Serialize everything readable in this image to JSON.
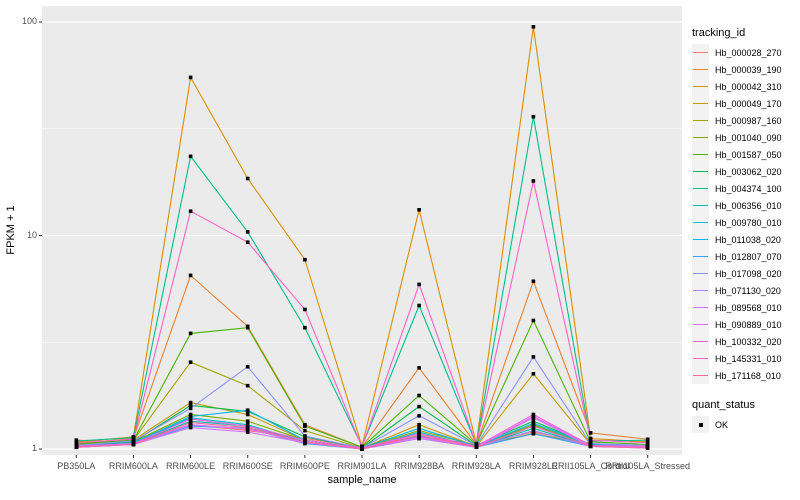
{
  "figure": {
    "background": "#FFFFFF",
    "panel_bg": "#EBEBEB",
    "grid_color": "#FFFFFF",
    "axis_text_color": "#4D4D4D",
    "tick_mark_color": "#333333",
    "point_color": "#000000"
  },
  "axes": {
    "x_title": "sample_name",
    "y_title": "FPKM + 1",
    "y_tick_labels": [
      "1",
      "10",
      "100"
    ],
    "y_tick_values": [
      1,
      10,
      100
    ],
    "y_minor_values": [
      3.1623,
      31.623
    ],
    "y_scale": "log10"
  },
  "legend": {
    "tracking_title": "tracking_id",
    "quant_title": "quant_status",
    "quant_items": [
      {
        "label": "OK",
        "shape": "square",
        "color": "#000000"
      }
    ]
  },
  "chart_data": {
    "type": "line",
    "title": "",
    "xlabel": "sample_name",
    "ylabel": "FPKM + 1",
    "yscale": "log10",
    "ylim": [
      0.94,
      119
    ],
    "grid": "on",
    "legend_position": "right",
    "x_categories": [
      "PB350LA",
      "RRIM600LA",
      "RRIM600LE",
      "RRIM600SE",
      "RRIM600PE",
      "RRIM901LA",
      "RRIM928BA",
      "RRIM928LA",
      "RRIM928LE",
      "RRII105LA_Control",
      "RRII105LA_Stressed"
    ],
    "series": [
      {
        "name": "Hb_000028_270",
        "color": "#F8766D",
        "values": [
          1.1,
          1.08,
          1.3,
          1.22,
          1.12,
          1.02,
          1.15,
          1.05,
          1.2,
          1.06,
          1.03
        ]
      },
      {
        "name": "Hb_000039_190",
        "color": "#E8812E",
        "values": [
          1.06,
          1.12,
          6.5,
          3.75,
          1.3,
          1.02,
          2.4,
          1.05,
          6.1,
          1.19,
          1.11
        ]
      },
      {
        "name": "Hb_000042_310",
        "color": "#D89000",
        "values": [
          1.08,
          1.14,
          55.0,
          18.5,
          7.7,
          1.03,
          13.2,
          1.06,
          95.0,
          1.12,
          1.08
        ]
      },
      {
        "name": "Hb_000049_170",
        "color": "#C49A00",
        "values": [
          1.04,
          1.1,
          1.65,
          1.45,
          1.1,
          1.01,
          1.3,
          1.03,
          2.25,
          1.05,
          1.03
        ]
      },
      {
        "name": "Hb_000987_160",
        "color": "#A3A500",
        "values": [
          1.05,
          1.1,
          2.55,
          1.98,
          1.22,
          1.01,
          1.22,
          1.04,
          1.18,
          1.05,
          1.02
        ]
      },
      {
        "name": "Hb_001040_090",
        "color": "#7CAE00",
        "values": [
          1.03,
          1.08,
          1.45,
          1.35,
          1.1,
          1.01,
          1.18,
          1.03,
          1.3,
          1.04,
          1.02
        ]
      },
      {
        "name": "Hb_001587_050",
        "color": "#49B500",
        "values": [
          1.06,
          1.1,
          3.48,
          3.7,
          1.28,
          1.02,
          1.78,
          1.05,
          4.0,
          1.08,
          1.05
        ]
      },
      {
        "name": "Hb_003062_020",
        "color": "#00BB4E",
        "values": [
          1.04,
          1.08,
          1.6,
          1.5,
          1.14,
          1.01,
          1.58,
          1.04,
          1.35,
          1.05,
          1.03
        ]
      },
      {
        "name": "Hb_004374_100",
        "color": "#00C08B",
        "values": [
          1.09,
          1.13,
          23.5,
          10.4,
          3.7,
          1.03,
          4.7,
          1.05,
          36.0,
          1.09,
          1.1
        ]
      },
      {
        "name": "Hb_006356_010",
        "color": "#00C0B4",
        "values": [
          1.03,
          1.06,
          1.35,
          1.28,
          1.08,
          1.0,
          1.15,
          1.02,
          1.25,
          1.03,
          1.02
        ]
      },
      {
        "name": "Hb_009780_010",
        "color": "#00BDD0",
        "values": [
          1.02,
          1.06,
          1.4,
          1.3,
          1.08,
          1.0,
          1.2,
          1.02,
          1.28,
          1.04,
          1.02
        ]
      },
      {
        "name": "Hb_011038_020",
        "color": "#00B4EF",
        "values": [
          1.03,
          1.07,
          1.42,
          1.52,
          1.1,
          1.01,
          1.25,
          1.03,
          1.32,
          1.05,
          1.03
        ]
      },
      {
        "name": "Hb_012807_070",
        "color": "#35A2FF",
        "values": [
          1.02,
          1.05,
          1.28,
          1.25,
          1.06,
          1.0,
          1.12,
          1.02,
          1.18,
          1.03,
          1.01
        ]
      },
      {
        "name": "Hb_017098_020",
        "color": "#8B93FF",
        "values": [
          1.04,
          1.09,
          1.55,
          2.43,
          1.15,
          1.01,
          1.43,
          1.04,
          2.7,
          1.06,
          1.04
        ]
      },
      {
        "name": "Hb_071130_020",
        "color": "#AE87FF",
        "values": [
          1.02,
          1.05,
          1.3,
          1.24,
          1.08,
          1.0,
          1.14,
          1.02,
          1.22,
          1.03,
          1.02
        ]
      },
      {
        "name": "Hb_089568_010",
        "color": "#CF78FF",
        "values": [
          1.02,
          1.05,
          1.26,
          1.2,
          1.07,
          1.0,
          1.12,
          1.02,
          1.4,
          1.03,
          1.02
        ]
      },
      {
        "name": "Hb_090889_010",
        "color": "#E56DF0",
        "values": [
          1.02,
          1.06,
          1.3,
          1.24,
          1.08,
          1.0,
          1.14,
          1.02,
          1.42,
          1.04,
          1.02
        ]
      },
      {
        "name": "Hb_100332_020",
        "color": "#F763DF",
        "values": [
          1.03,
          1.06,
          1.38,
          1.28,
          1.1,
          1.01,
          1.18,
          1.03,
          1.45,
          1.04,
          1.03
        ]
      },
      {
        "name": "Hb_145331_010",
        "color": "#FF61C7",
        "values": [
          1.07,
          1.11,
          13.0,
          9.3,
          4.5,
          1.02,
          5.9,
          1.05,
          18.0,
          1.1,
          1.07
        ]
      },
      {
        "name": "Hb_171168_010",
        "color": "#FF689E",
        "values": [
          1.02,
          1.05,
          1.33,
          1.26,
          1.08,
          1.0,
          1.16,
          1.02,
          1.28,
          1.03,
          1.01
        ]
      }
    ]
  }
}
